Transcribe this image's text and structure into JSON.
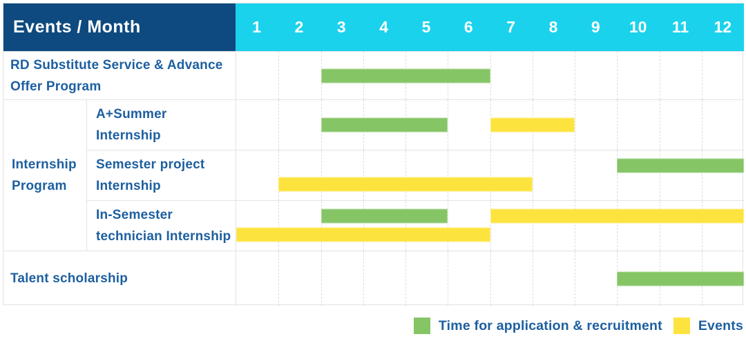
{
  "header": {
    "title": "Events / Month",
    "months": [
      "1",
      "2",
      "3",
      "4",
      "5",
      "6",
      "7",
      "8",
      "9",
      "10",
      "11",
      "12"
    ]
  },
  "legend": {
    "application_label": "Time for application & recruitment",
    "event_label": "Events"
  },
  "colors": {
    "header_bg": "#0e4a7f",
    "month_band_bg": "#1bd2ed",
    "application_bar": "#85c565",
    "event_bar": "#fde33e",
    "label_text": "#1d5fa0",
    "grid_line": "#e3e3e3"
  },
  "chart_data": {
    "type": "bar",
    "subtype": "gantt-schedule",
    "title": "Events / Month",
    "x_categories": [
      "1",
      "2",
      "3",
      "4",
      "5",
      "6",
      "7",
      "8",
      "9",
      "10",
      "11",
      "12"
    ],
    "x_range": [
      1,
      12
    ],
    "grid": "dashed-vertical-month-lines",
    "legend_position": "bottom-right",
    "legend_entries": [
      {
        "series": "application",
        "label": "Time for application & recruitment",
        "color": "#85c565"
      },
      {
        "series": "event",
        "label": "Events",
        "color": "#fde33e"
      }
    ],
    "rows": [
      {
        "kind": "single",
        "label": "RD Substitute Service & Advance Offer Program",
        "lines": 1,
        "bars": [
          {
            "series": "application",
            "start_month": 3,
            "end_month": 6,
            "line": 0
          }
        ]
      },
      {
        "kind": "group",
        "label": "Internship Program",
        "children": [
          {
            "label": "A+Summer Internship",
            "lines": 1,
            "bars": [
              {
                "series": "application",
                "start_month": 3,
                "end_month": 5,
                "line": 0
              },
              {
                "series": "event",
                "start_month": 7,
                "end_month": 8,
                "line": 0
              }
            ]
          },
          {
            "label": "Semester project Internship",
            "lines": 2,
            "bars": [
              {
                "series": "application",
                "start_month": 10,
                "end_month": 12,
                "line": 0
              },
              {
                "series": "event",
                "start_month": 2,
                "end_month": 7,
                "line": 1
              }
            ]
          },
          {
            "label": "In-Semester technician Internship",
            "lines": 2,
            "bars": [
              {
                "series": "application",
                "start_month": 3,
                "end_month": 5,
                "line": 0
              },
              {
                "series": "event",
                "start_month": 7,
                "end_month": 12,
                "line": 0
              },
              {
                "series": "event",
                "start_month": 1,
                "end_month": 6,
                "line": 1
              }
            ]
          }
        ]
      },
      {
        "kind": "single",
        "label": "Talent scholarship",
        "lines": 1,
        "bars": [
          {
            "series": "application",
            "start_month": 10,
            "end_month": 12,
            "line": 0
          }
        ]
      }
    ]
  }
}
